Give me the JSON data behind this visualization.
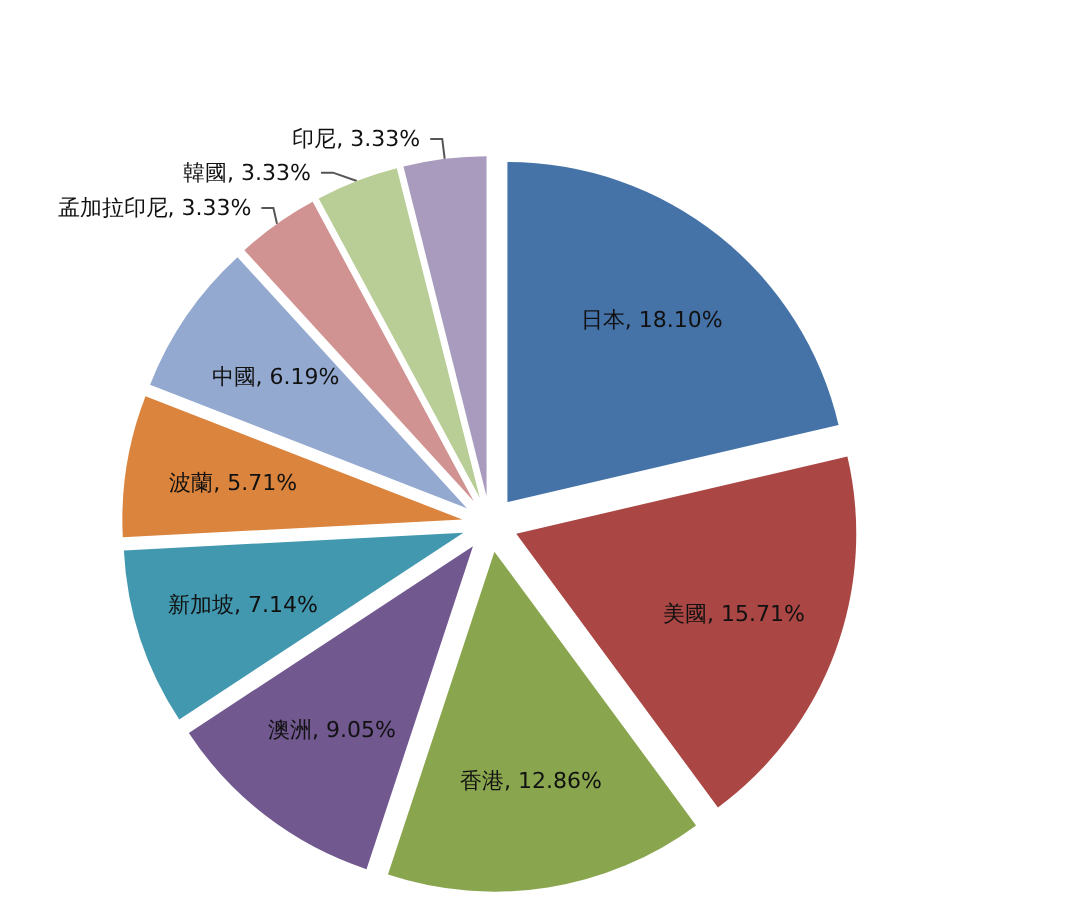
{
  "chart_data": {
    "type": "pie",
    "categories": [
      "日本",
      "美國",
      "香港",
      "澳洲",
      "新加坡",
      "波蘭",
      "中國",
      "孟加拉印尼",
      "韓國",
      "印尼"
    ],
    "values": [
      18.1,
      15.71,
      12.86,
      9.05,
      7.14,
      5.71,
      6.19,
      3.33,
      3.33,
      3.33
    ],
    "value_labels": [
      "18.10%",
      "15.71%",
      "12.86%",
      "9.05%",
      "7.14%",
      "5.71%",
      "6.19%",
      "3.33%",
      "3.33%",
      "3.33%"
    ],
    "colors": [
      "#4572a7",
      "#aa4643",
      "#89a54e",
      "#71588f",
      "#4198af",
      "#db843d",
      "#93a9cf",
      "#d19392",
      "#b9cd96",
      "#a99bbd"
    ],
    "legend": false
  }
}
